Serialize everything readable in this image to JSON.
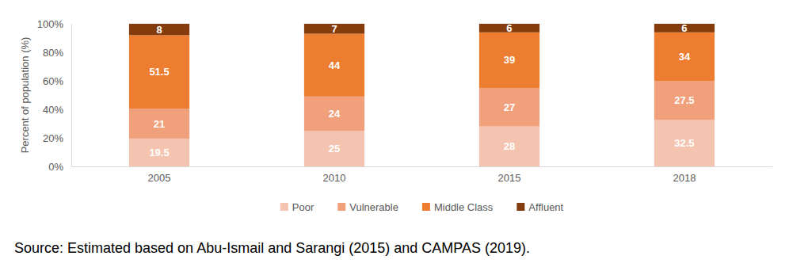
{
  "chart_data": {
    "type": "bar",
    "stacked": true,
    "data_labels": true,
    "grid": false,
    "legend": "bottom",
    "y_label": "Percent of population (%)",
    "source": "Source: Estimated based on Abu-Ismail and Sarangi (2015) and CAMPAS (2019).",
    "categories": [
      "2005",
      "2010",
      "2015",
      "2018"
    ],
    "series": [
      {
        "name": "Poor",
        "color": "#f5c4b0",
        "values": [
          19.5,
          25,
          28,
          32.5
        ]
      },
      {
        "name": "Vulnerable",
        "color": "#f0a07a",
        "values": [
          21,
          24,
          27,
          27.5
        ]
      },
      {
        "name": "Middle Class",
        "color": "#ed7d31",
        "values": [
          51.5,
          44,
          39,
          34
        ]
      },
      {
        "name": "Affluent",
        "color": "#843c0c",
        "values": [
          8,
          7,
          6,
          6
        ]
      }
    ],
    "ylim": [
      0,
      100
    ],
    "yticks": [
      {
        "value": 0,
        "label": "0%"
      },
      {
        "value": 20,
        "label": "20%"
      },
      {
        "value": 40,
        "label": "40%"
      },
      {
        "value": 60,
        "label": "60%"
      },
      {
        "value": 80,
        "label": "80%"
      },
      {
        "value": 100,
        "label": "100%"
      }
    ]
  }
}
